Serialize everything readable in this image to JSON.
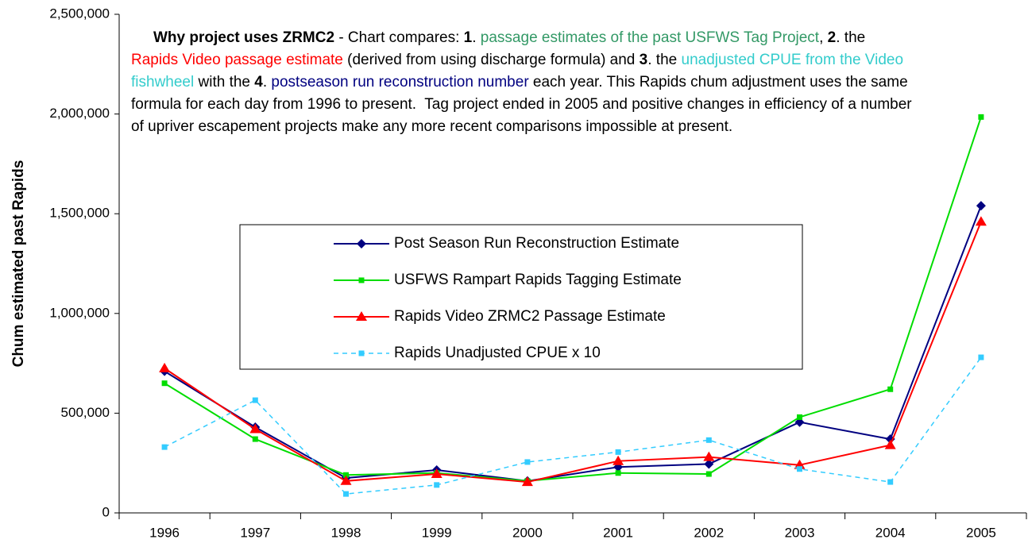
{
  "chart_data": {
    "type": "line",
    "y_label": "Chum estimated past Rapids",
    "categories": [
      "1996",
      "1997",
      "1998",
      "1999",
      "2000",
      "2001",
      "2002",
      "2003",
      "2004",
      "2005"
    ],
    "ylim": [
      0,
      2500000
    ],
    "yticks": [
      0,
      {
        "value": 500000,
        "label": "500,000"
      },
      {
        "value": 1000000,
        "label": "1,000,000"
      },
      {
        "value": 1500000,
        "label": "1,500,000"
      },
      {
        "value": 2000000,
        "label": "2,000,000"
      },
      {
        "value": 2500000,
        "label": "2,500,000"
      }
    ],
    "series": [
      {
        "name": "Post Season Run Reconstruction Estimate",
        "color": "#000080",
        "marker": "diamond",
        "dash": false,
        "values": [
          710000,
          430000,
          175000,
          215000,
          160000,
          230000,
          245000,
          455000,
          370000,
          1540000
        ]
      },
      {
        "name": "USFWS Rampart Rapids Tagging Estimate",
        "color": "#00dd00",
        "marker": "square",
        "dash": false,
        "values": [
          650000,
          370000,
          190000,
          200000,
          160000,
          200000,
          195000,
          480000,
          620000,
          1985000
        ]
      },
      {
        "name": "Rapids Video ZRMC2 Passage Estimate",
        "color": "#ff0000",
        "marker": "triangle",
        "dash": false,
        "values": [
          725000,
          420000,
          160000,
          195000,
          155000,
          260000,
          280000,
          240000,
          340000,
          1460000
        ]
      },
      {
        "name": "Rapids Unadjusted CPUE x 10",
        "color": "#33ccff",
        "marker": "square",
        "dash": true,
        "values": [
          330000,
          565000,
          95000,
          140000,
          255000,
          305000,
          365000,
          220000,
          155000,
          780000
        ]
      }
    ],
    "annotation": [
      {
        "text": "Why project uses ZRMC2",
        "bold": true,
        "color": "#000000"
      },
      {
        "text": " - Chart compares: ",
        "bold": false,
        "color": "#000000"
      },
      {
        "text": "1",
        "bold": true,
        "color": "#000000"
      },
      {
        "text": ". ",
        "bold": false,
        "color": "#000000"
      },
      {
        "text": "passage estimates of the past USFWS Tag Project",
        "bold": false,
        "color": "#339966"
      },
      {
        "text": ", ",
        "bold": false,
        "color": "#000000"
      },
      {
        "text": "2",
        "bold": true,
        "color": "#000000"
      },
      {
        "text": ". the ",
        "bold": false,
        "color": "#000000"
      },
      {
        "text": "Rapids Video passage estimate",
        "bold": false,
        "color": "#ff0000"
      },
      {
        "text": " (derived from using discharge formula) and ",
        "bold": false,
        "color": "#000000"
      },
      {
        "text": "3",
        "bold": true,
        "color": "#000000"
      },
      {
        "text": ". the ",
        "bold": false,
        "color": "#000000"
      },
      {
        "text": "unadjusted CPUE from the Video fishwheel",
        "bold": false,
        "color": "#33cccc"
      },
      {
        "text": " with the ",
        "bold": false,
        "color": "#000000"
      },
      {
        "text": "4",
        "bold": true,
        "color": "#000000"
      },
      {
        "text": ". ",
        "bold": false,
        "color": "#000000"
      },
      {
        "text": "postseason run reconstruction number",
        "bold": false,
        "color": "#000080"
      },
      {
        "text": " each year. This Rapids chum adjustment uses the same formula for each day from 1996 to present.  Tag project ended in 2005 and positive changes in efficiency of a number of upriver escapement projects make any more recent comparisons impossible at present.",
        "bold": false,
        "color": "#000000"
      }
    ]
  }
}
